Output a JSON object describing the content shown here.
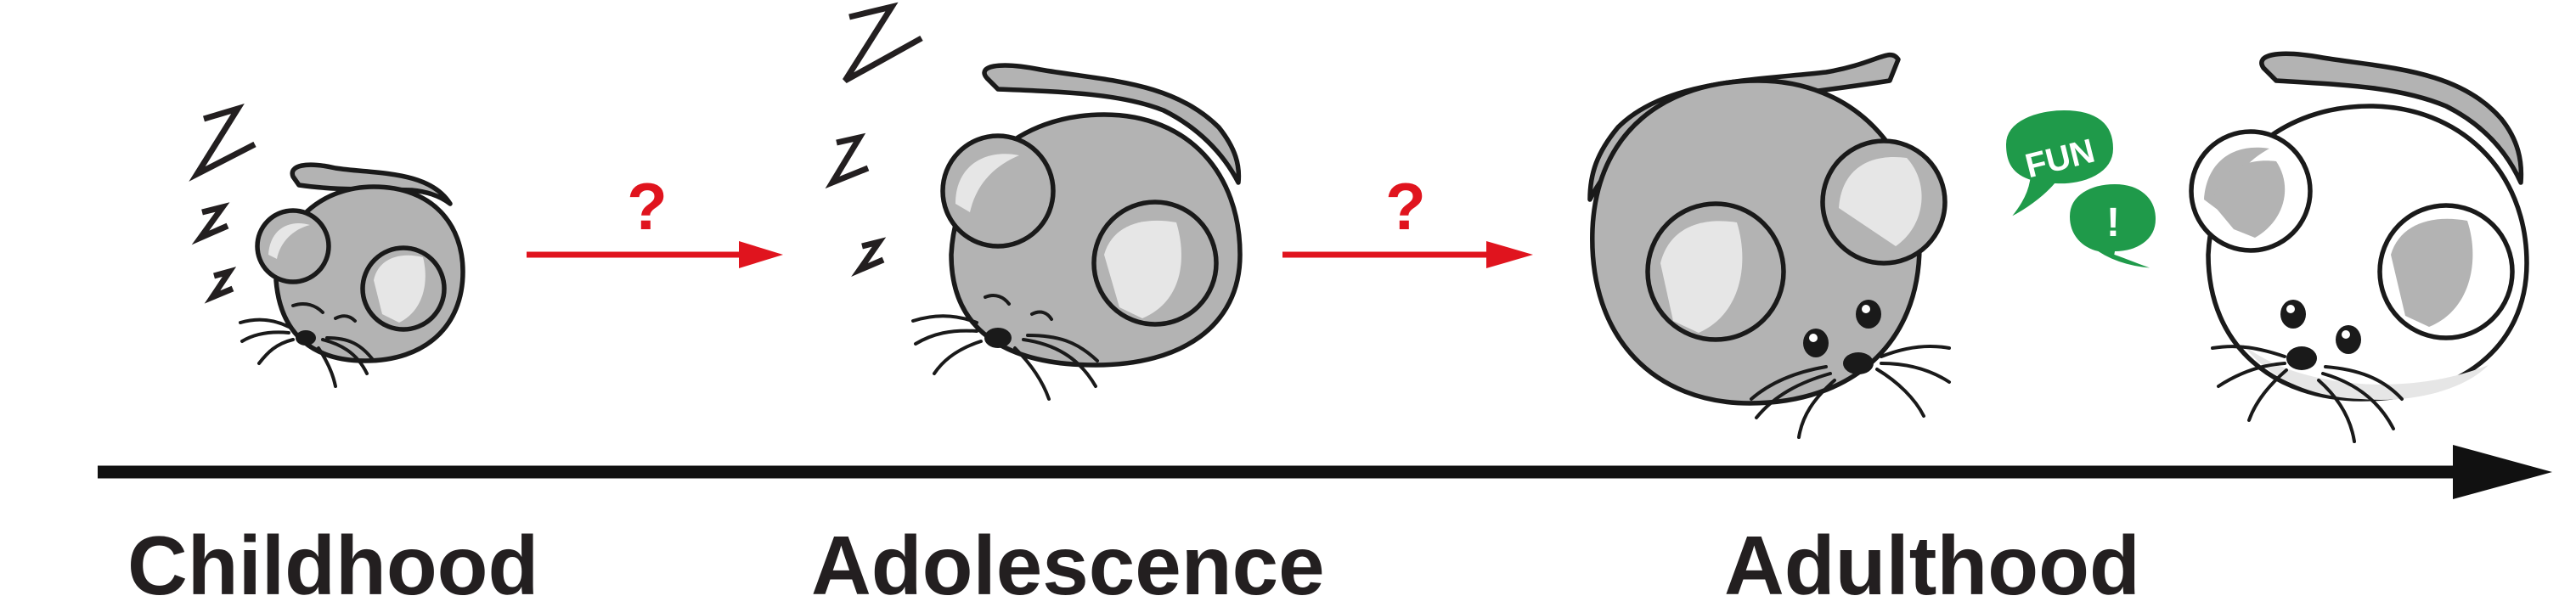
{
  "stages": {
    "childhood": "Childhood",
    "adolescence": "Adolescence",
    "adulthood": "Adulthood"
  },
  "transitions": {
    "first_mark": "?",
    "second_mark": "?"
  },
  "social_bubbles": {
    "first": "FUN",
    "second": "!"
  },
  "colors": {
    "timeline": "#111111",
    "transition_arrow": "#e0141e",
    "question_mark": "#e0141e",
    "mouse_gray": "#b3b3b3",
    "mouse_white": "#ffffff",
    "ear_inner": "#e6e6e6",
    "bubble_green": "#1f9a4a"
  },
  "icons": [
    "sleeping-mouse-icon",
    "zzz-sleep-icon",
    "speech-bubble-icon",
    "timeline-arrow-icon"
  ]
}
